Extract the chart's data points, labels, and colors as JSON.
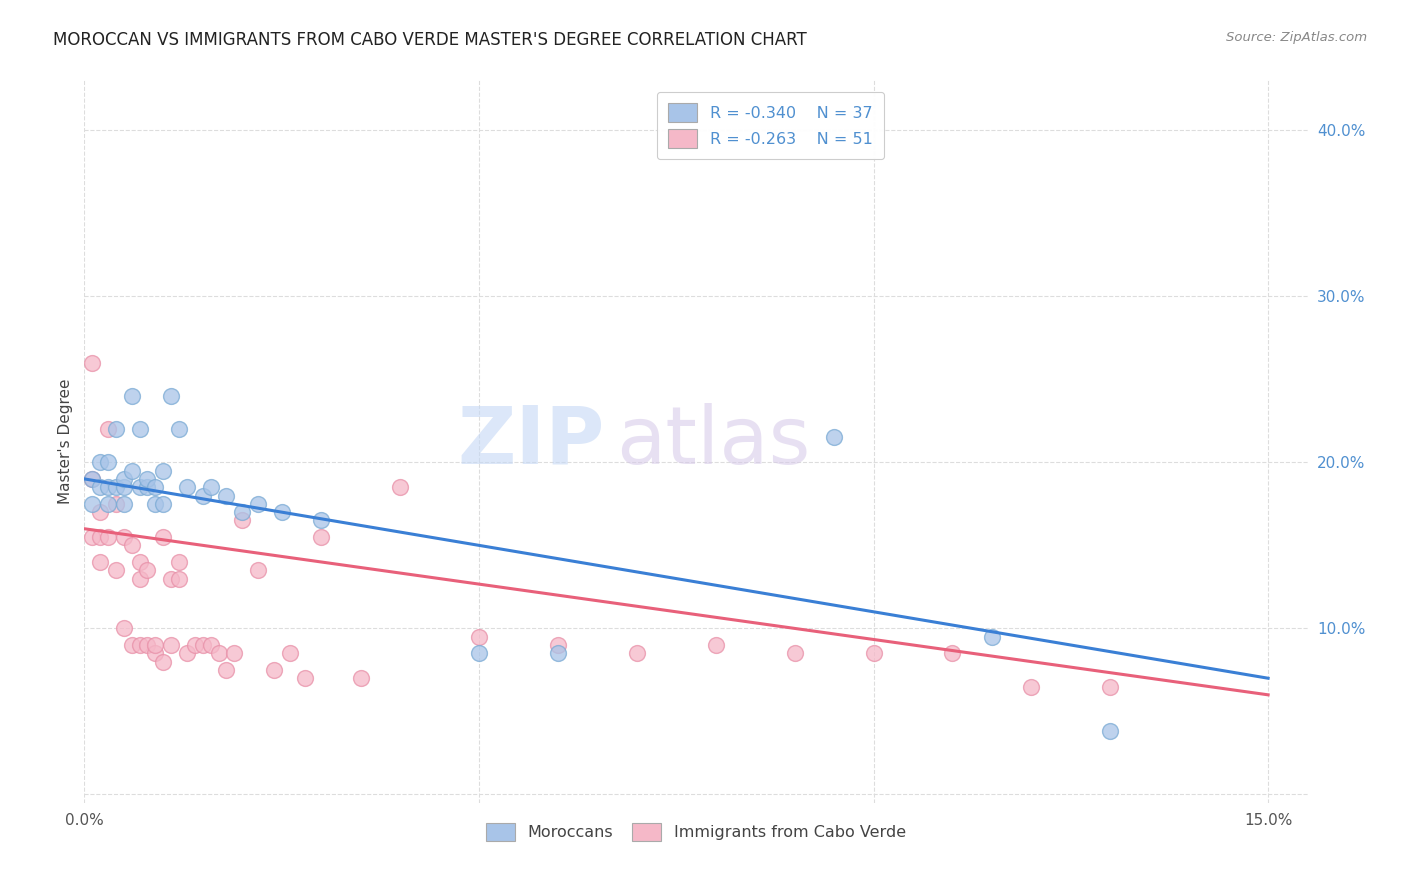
{
  "title": "MOROCCAN VS IMMIGRANTS FROM CABO VERDE MASTER'S DEGREE CORRELATION CHART",
  "source": "Source: ZipAtlas.com",
  "ylabel": "Master's Degree",
  "moroccan_R": -0.34,
  "moroccan_N": 37,
  "cabo_verde_R": -0.263,
  "cabo_verde_N": 51,
  "moroccan_color": "#a8c4e8",
  "cabo_verde_color": "#f5b8c8",
  "moroccan_line_color": "#3a7fd5",
  "cabo_verde_line_color": "#e8607a",
  "moroccan_edge_color": "#7aaad4",
  "cabo_verde_edge_color": "#e890a8",
  "watermark_zip_color": "#c8d8f0",
  "watermark_atlas_color": "#d8c8e8",
  "background_color": "#ffffff",
  "grid_color": "#dddddd",
  "right_tick_color": "#5090d0",
  "xlim": [
    0.0,
    0.155
  ],
  "ylim": [
    -0.005,
    0.43
  ],
  "moroccan_line_x0": 0.0,
  "moroccan_line_y0": 0.19,
  "moroccan_line_x1": 0.15,
  "moroccan_line_y1": 0.07,
  "cabo_verde_line_x0": 0.0,
  "cabo_verde_line_y0": 0.16,
  "cabo_verde_line_x1": 0.15,
  "cabo_verde_line_y1": 0.06,
  "moroccan_x": [
    0.001,
    0.001,
    0.002,
    0.002,
    0.003,
    0.003,
    0.003,
    0.004,
    0.004,
    0.005,
    0.005,
    0.005,
    0.006,
    0.006,
    0.007,
    0.007,
    0.008,
    0.008,
    0.009,
    0.009,
    0.01,
    0.01,
    0.011,
    0.012,
    0.013,
    0.015,
    0.016,
    0.018,
    0.02,
    0.022,
    0.025,
    0.03,
    0.05,
    0.06,
    0.095,
    0.115,
    0.13
  ],
  "moroccan_y": [
    0.19,
    0.175,
    0.185,
    0.2,
    0.185,
    0.175,
    0.2,
    0.185,
    0.22,
    0.185,
    0.175,
    0.19,
    0.195,
    0.24,
    0.22,
    0.185,
    0.185,
    0.19,
    0.185,
    0.175,
    0.195,
    0.175,
    0.24,
    0.22,
    0.185,
    0.18,
    0.185,
    0.18,
    0.17,
    0.175,
    0.17,
    0.165,
    0.085,
    0.085,
    0.215,
    0.095,
    0.038
  ],
  "cabo_verde_x": [
    0.001,
    0.001,
    0.001,
    0.002,
    0.002,
    0.002,
    0.003,
    0.003,
    0.004,
    0.004,
    0.005,
    0.005,
    0.006,
    0.006,
    0.007,
    0.007,
    0.007,
    0.008,
    0.008,
    0.009,
    0.009,
    0.01,
    0.01,
    0.011,
    0.011,
    0.012,
    0.012,
    0.013,
    0.014,
    0.015,
    0.016,
    0.017,
    0.018,
    0.019,
    0.02,
    0.022,
    0.024,
    0.026,
    0.028,
    0.03,
    0.035,
    0.04,
    0.05,
    0.06,
    0.07,
    0.08,
    0.09,
    0.1,
    0.11,
    0.12,
    0.13
  ],
  "cabo_verde_y": [
    0.155,
    0.19,
    0.26,
    0.155,
    0.14,
    0.17,
    0.22,
    0.155,
    0.135,
    0.175,
    0.1,
    0.155,
    0.09,
    0.15,
    0.13,
    0.14,
    0.09,
    0.135,
    0.09,
    0.085,
    0.09,
    0.08,
    0.155,
    0.09,
    0.13,
    0.14,
    0.13,
    0.085,
    0.09,
    0.09,
    0.09,
    0.085,
    0.075,
    0.085,
    0.165,
    0.135,
    0.075,
    0.085,
    0.07,
    0.155,
    0.07,
    0.185,
    0.095,
    0.09,
    0.085,
    0.09,
    0.085,
    0.085,
    0.085,
    0.065,
    0.065
  ]
}
